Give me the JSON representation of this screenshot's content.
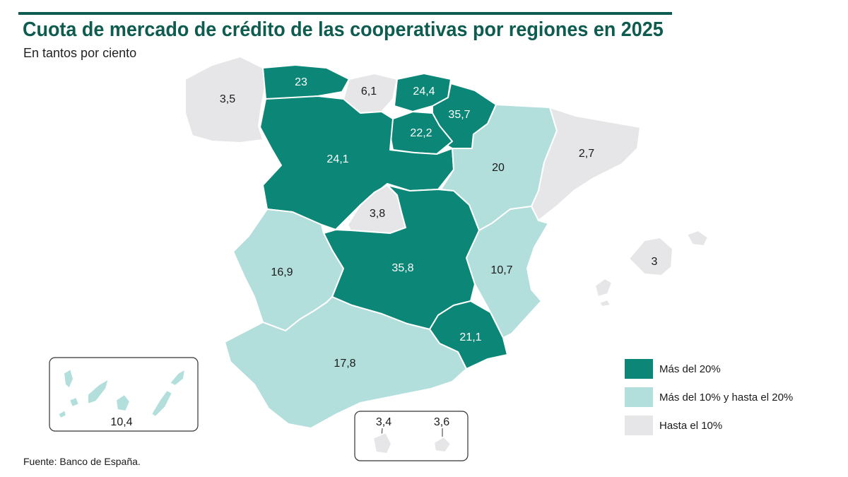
{
  "title": "Cuota de mercado de crédito de las cooperativas por regiones en 2025",
  "subtitle": "En tantos por ciento",
  "source": "Fuente: Banco de España.",
  "colors": {
    "high": "#0b8677",
    "mid": "#b2dedc",
    "low": "#e6e6e8",
    "title": "#0e5c4f"
  },
  "legend": [
    {
      "label": "Más del 20%",
      "category": "high"
    },
    {
      "label": "Más del 10% y hasta el 20%",
      "category": "mid"
    },
    {
      "label": "Hasta el 10%",
      "category": "low"
    }
  ],
  "regions": {
    "galicia": "3,5",
    "asturias": "23",
    "cantabria": "6,1",
    "pais_vasco": "24,4",
    "navarra": "35,7",
    "la_rioja": "22,2",
    "castilla_y_leon": "24,1",
    "aragon": "20",
    "cataluna": "2,7",
    "madrid": "3,8",
    "castilla_la_mancha": "35,8",
    "extremadura": "16,9",
    "comunidad_valenciana": "10,7",
    "murcia": "21,1",
    "andalucia": "17,8",
    "baleares": "3",
    "canarias": "10,4",
    "ceuta": "3,4",
    "melilla": "3,6"
  }
}
